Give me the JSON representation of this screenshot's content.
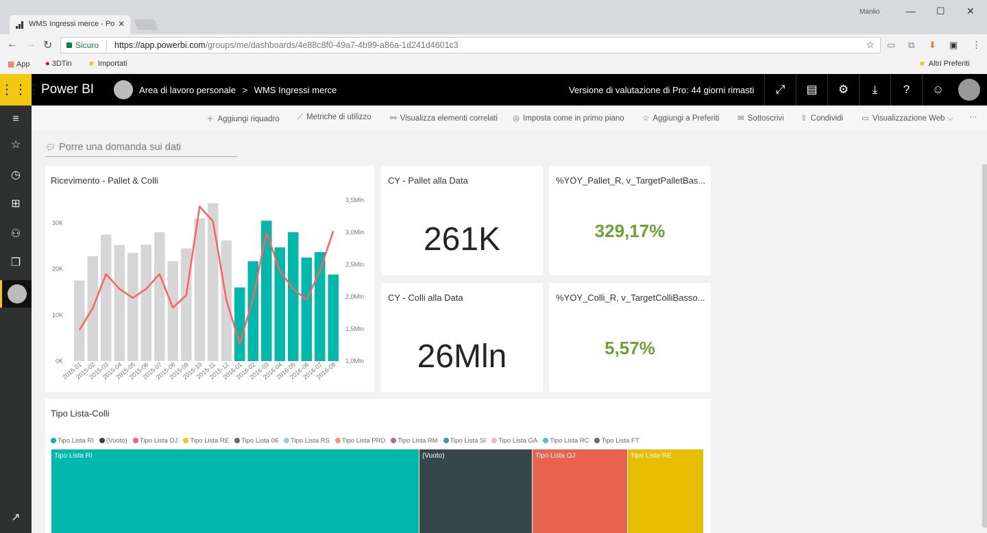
{
  "browser": {
    "tab_title": "WMS Ingressi merce - Po",
    "window_user": "Manlio",
    "secure_label": "Sicuro",
    "url_host": "https://app.powerbi.com",
    "url_path": "/groups/me/dashboards/4e88c8f0-49a7-4b99-a86a-1d241d4601c3",
    "bookmarks": [
      "App",
      "3DTin",
      "Importati"
    ],
    "other_bookmarks": "Altri Preferiti"
  },
  "header": {
    "brand": "Power BI",
    "workspace": "Area di lavoro personale",
    "separator": ">",
    "dashboard": "WMS Ingressi merce",
    "trial": "Versione di valutazione di Pro: 44 giorni rimasti"
  },
  "actions": [
    "Aggiungi riquadro",
    "Metriche di utilizzo",
    "Visualizza elementi correlati",
    "Imposta come in primo piano",
    "Aggiungi a Preferiti",
    "Sottoscrivi",
    "Condividi",
    "Visualizzazione Web"
  ],
  "qna_placeholder": "Porre una domanda sui dati",
  "tiles": {
    "chart_title": "Ricevimento - Pallet & Colli",
    "cy_pallet_title": "CY - Pallet alla Data",
    "cy_pallet_value": "261K",
    "cy_colli_title": "CY - Colli alla Data",
    "cy_colli_value": "26Mln",
    "yoy_pallet_title": "%YOY_Pallet_R, v_TargetPalletBas...",
    "yoy_pallet_value": "329,17%",
    "yoy_colli_title": "%YOY_Colli_R, v_TargetColliBasso...",
    "yoy_colli_value": "5,57%",
    "treemap_title": "Tipo Lista-Colli"
  },
  "chart_data": {
    "type": "bar",
    "title": "Ricevimento - Pallet & Colli",
    "categories": [
      "2015-01",
      "2015-02",
      "2015-03",
      "2015-04",
      "2015-05",
      "2015-06",
      "2015-07",
      "2015-08",
      "2015-09",
      "2015-10",
      "2015-11",
      "2015-12",
      "2016-01",
      "2016-02",
      "2016-03",
      "2016-04",
      "2016-05",
      "2016-06",
      "2016-07",
      "2016-08"
    ],
    "x_tick_labels": [
      "2015-01",
      "2015-02",
      "2015-03",
      "2015-04",
      "2015-05",
      "2015-06",
      "2015-07",
      "2015-08",
      "2015-09",
      "2015-10",
      "2015-11",
      "2015-12",
      "2016-01",
      "2016-02",
      "2016-03",
      "2016-04",
      "2016-05",
      "2016-06",
      "2016-07",
      "2016-08"
    ],
    "series": [
      {
        "values": [
          17500,
          22800,
          27500,
          25200,
          23500,
          25300,
          28000,
          21700,
          24500,
          31000,
          34300,
          26200,
          16000,
          21700,
          30500,
          24700,
          28000,
          22500,
          23700,
          18800
        ]
      },
      {
        "values": [
          1.48,
          1.82,
          2.35,
          2.12,
          1.98,
          2.12,
          2.35,
          1.83,
          2.02,
          3.4,
          3.17,
          1.95,
          1.27,
          1.97,
          3.0,
          2.4,
          2.12,
          1.95,
          2.4,
          3.02
        ]
      }
    ],
    "y_ticks": [
      "0K",
      "10K",
      "20K",
      "30K"
    ],
    "ylim": [
      0,
      35000
    ],
    "y2_ticks": [
      "1,0Mln",
      "1,5Mln",
      "2,0Mln",
      "2,5Mln",
      "3,0Mln",
      "3,5Mln"
    ],
    "y2lim": [
      1.0,
      3.5
    ],
    "colors": {
      "bar_2015": "#d6d6d6",
      "bar_2016": "#01b8aa",
      "line": "#fd625e"
    }
  },
  "treemap": {
    "legend": [
      {
        "label": "Tipo Lista RI",
        "color": "#01b8aa"
      },
      {
        "label": "(Vuoto)",
        "color": "#374649"
      },
      {
        "label": "Tipo Lista OJ",
        "color": "#fd625e"
      },
      {
        "label": "Tipo Lista RE",
        "color": "#f2c80f"
      },
      {
        "label": "Tipo Lista 06",
        "color": "#5f6b6d"
      },
      {
        "label": "Tipo Lista RS",
        "color": "#8ad4eb"
      },
      {
        "label": "Tipo Lista PRD",
        "color": "#fe9666"
      },
      {
        "label": "Tipo Lista RM",
        "color": "#a66999"
      },
      {
        "label": "Tipo Lista SI",
        "color": "#3599b8"
      },
      {
        "label": "Tipo Lista GA",
        "color": "#dfbfbf"
      },
      {
        "label": "Tipo Lista RC",
        "color": "#4ac5bb"
      },
      {
        "label": "Tipo Lista FT",
        "color": "#5f6b6d"
      }
    ],
    "blocks": [
      "Tipo Lista RI",
      "(Vuoto)",
      "Tipo Lista OJ",
      "Tipo Lista RE"
    ]
  }
}
